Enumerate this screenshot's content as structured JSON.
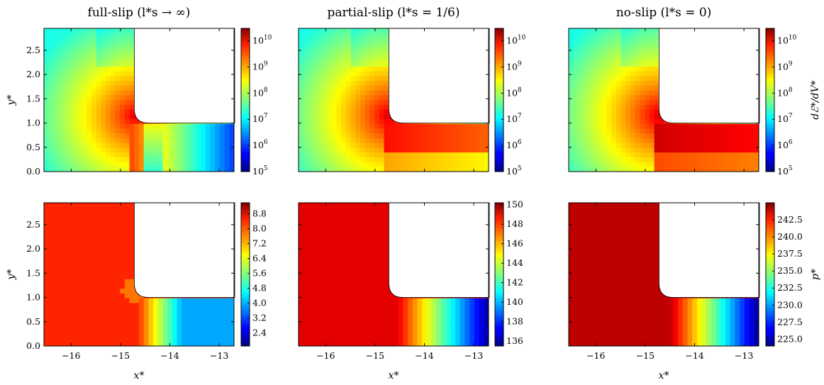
{
  "columns": [
    {
      "key": "full-slip",
      "title": "full-slip (l*s → ∞)"
    },
    {
      "key": "partial-slip",
      "title": "partial-slip (l*s = 1/6)"
    },
    {
      "key": "no-slip",
      "title": "no-slip (l*s = 0)"
    }
  ],
  "rows": [
    {
      "key": "dissipation",
      "colorbar_label": "dℰ*/dV*"
    },
    {
      "key": "pressure",
      "colorbar_label": "p*"
    }
  ],
  "axes": {
    "xlabel": "x*",
    "ylabel": "y*",
    "xlim": [
      -16.55,
      -12.7
    ],
    "ylim": [
      0.0,
      2.95
    ],
    "xticks": [
      -16,
      -15,
      -14,
      -13
    ],
    "yticks": [
      0.0,
      0.5,
      1.0,
      1.5,
      2.0,
      2.5
    ],
    "xtick_labels": [
      "−16",
      "−15",
      "−14",
      "−13"
    ],
    "ytick_labels": [
      "0.0",
      "0.5",
      "1.0",
      "1.5",
      "2.0",
      "2.5"
    ]
  },
  "colormap": "jet",
  "chart_data": [
    {
      "type": "heatmap",
      "row": "dissipation",
      "column": "full-slip",
      "title": "full-slip (l*s → ∞)",
      "xlabel": "",
      "ylabel": "y*",
      "colorbar_label": "",
      "color_scale": "log",
      "color_range": [
        100000.0,
        30000000000.0
      ],
      "colorbar_ticks": [
        "10^5",
        "10^6",
        "10^7",
        "10^8",
        "10^9",
        "10^10"
      ]
    },
    {
      "type": "heatmap",
      "row": "dissipation",
      "column": "partial-slip",
      "title": "partial-slip (l*s = 1/6)",
      "xlabel": "",
      "ylabel": "",
      "colorbar_label": "",
      "color_scale": "log",
      "color_range": [
        100000.0,
        30000000000.0
      ],
      "colorbar_ticks": [
        "10^5",
        "10^6",
        "10^7",
        "10^8",
        "10^9",
        "10^10"
      ]
    },
    {
      "type": "heatmap",
      "row": "dissipation",
      "column": "no-slip",
      "title": "no-slip (l*s = 0)",
      "xlabel": "",
      "ylabel": "",
      "colorbar_label": "dℰ*/dV*",
      "color_scale": "log",
      "color_range": [
        100000.0,
        30000000000.0
      ],
      "colorbar_ticks": [
        "10^5",
        "10^6",
        "10^7",
        "10^8",
        "10^9",
        "10^10"
      ]
    },
    {
      "type": "heatmap",
      "row": "pressure",
      "column": "full-slip",
      "title": "",
      "xlabel": "x*",
      "ylabel": "y*",
      "colorbar_label": "",
      "color_scale": "linear",
      "color_range": [
        1.7,
        9.4
      ],
      "colorbar_ticks": [
        "2.4",
        "3.2",
        "4.0",
        "4.8",
        "5.6",
        "6.4",
        "7.2",
        "8.0",
        "8.8"
      ]
    },
    {
      "type": "heatmap",
      "row": "pressure",
      "column": "partial-slip",
      "title": "",
      "xlabel": "x*",
      "ylabel": "",
      "colorbar_label": "",
      "color_scale": "linear",
      "color_range": [
        135.5,
        150.2
      ],
      "colorbar_ticks": [
        "136",
        "138",
        "140",
        "142",
        "144",
        "146",
        "148",
        "150"
      ]
    },
    {
      "type": "heatmap",
      "row": "pressure",
      "column": "no-slip",
      "title": "",
      "xlabel": "x*",
      "ylabel": "",
      "colorbar_label": "p*",
      "color_scale": "linear",
      "color_range": [
        224,
        245
      ],
      "colorbar_ticks": [
        "225.0",
        "227.5",
        "230.0",
        "232.5",
        "235.0",
        "237.5",
        "240.0",
        "242.5"
      ]
    }
  ]
}
